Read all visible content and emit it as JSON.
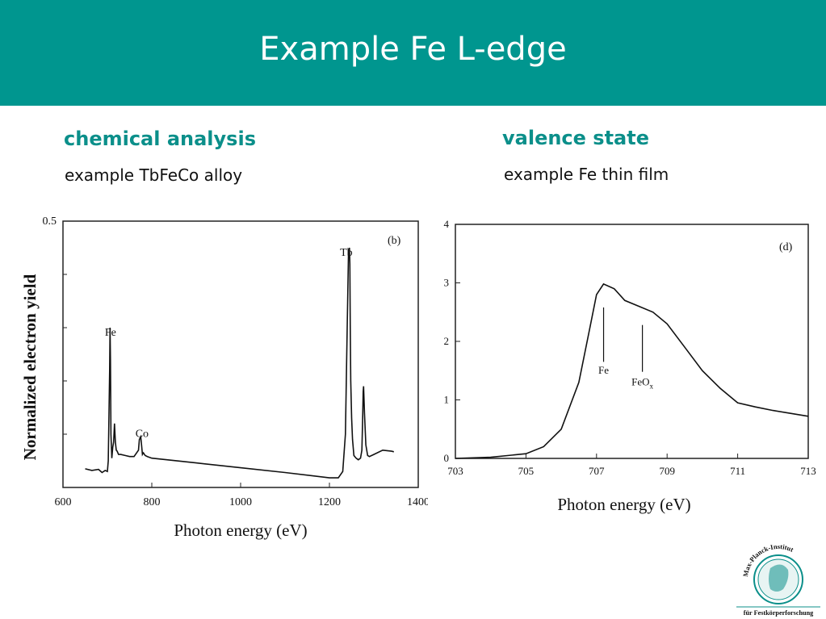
{
  "slide": {
    "title": "Example Fe L-edge"
  },
  "left": {
    "heading": "chemical analysis",
    "subtitle": "example TbFeCo alloy"
  },
  "right": {
    "heading": "valence state",
    "subtitle": "example Fe thin film"
  },
  "logo": {
    "text_arc": "Max-Planck-Institut",
    "text_bottom": "für Festkörperforschung"
  },
  "colors": {
    "header": "#00968f",
    "heading": "#0b8f8a"
  },
  "chart_data": [
    {
      "type": "line",
      "panel_label": "(b)",
      "xlabel": "Photon energy  (eV)",
      "ylabel": "Normalized electron yield",
      "xlim": [
        600,
        1400
      ],
      "ylim": [
        0,
        0.5
      ],
      "xticks": [
        "600",
        "800",
        "1000",
        "1200",
        "1400"
      ],
      "yticks": [
        "0.5"
      ],
      "annotations": [
        {
          "text": "Fe",
          "x": 707,
          "y": 0.285
        },
        {
          "text": "Co",
          "x": 778,
          "y": 0.095
        },
        {
          "text": "Tb",
          "x": 1238,
          "y": 0.435
        }
      ],
      "series": [
        {
          "x": [
            650,
            665,
            680,
            688,
            695,
            700,
            702,
            705,
            706,
            707,
            708,
            710,
            712,
            714,
            716,
            718,
            720,
            722,
            725,
            730,
            740,
            750,
            760,
            770,
            772,
            775,
            777,
            779,
            781,
            785,
            790,
            800,
            900,
            1000,
            1100,
            1200,
            1220,
            1230,
            1236,
            1240,
            1243,
            1245,
            1246,
            1247,
            1248,
            1250,
            1252,
            1255,
            1260,
            1265,
            1270,
            1273,
            1275,
            1276,
            1277,
            1279,
            1282,
            1286,
            1290,
            1300,
            1320,
            1340,
            1345
          ],
          "y": [
            0.035,
            0.032,
            0.034,
            0.028,
            0.032,
            0.03,
            0.05,
            0.22,
            0.3,
            0.24,
            0.1,
            0.055,
            0.075,
            0.085,
            0.12,
            0.085,
            0.07,
            0.068,
            0.062,
            0.062,
            0.06,
            0.058,
            0.058,
            0.07,
            0.09,
            0.095,
            0.08,
            0.062,
            0.065,
            0.06,
            0.058,
            0.055,
            0.046,
            0.037,
            0.028,
            0.018,
            0.018,
            0.03,
            0.1,
            0.3,
            0.44,
            0.45,
            0.42,
            0.3,
            0.2,
            0.13,
            0.09,
            0.06,
            0.055,
            0.052,
            0.055,
            0.07,
            0.14,
            0.18,
            0.19,
            0.14,
            0.08,
            0.06,
            0.058,
            0.062,
            0.07,
            0.068,
            0.067
          ]
        }
      ]
    },
    {
      "type": "line",
      "panel_label": "(d)",
      "xlabel": "Photon energy  (eV)",
      "xlim": [
        703,
        713
      ],
      "ylim": [
        0,
        4
      ],
      "xticks": [
        "703",
        "705",
        "707",
        "709",
        "711",
        "713"
      ],
      "yticks": [
        "0",
        "1",
        "2",
        "3",
        "4"
      ],
      "annotations": [
        {
          "text": "Fe",
          "x": 707.2,
          "y": 1.45
        },
        {
          "text": "FeO",
          "subscript": "x",
          "x": 708.3,
          "y": 1.25
        }
      ],
      "series": [
        {
          "x": [
            703,
            704,
            705,
            705.5,
            706,
            706.5,
            706.8,
            707,
            707.2,
            707.5,
            707.8,
            708.2,
            708.6,
            709,
            709.5,
            710,
            710.5,
            711,
            711.5,
            712,
            712.5,
            713
          ],
          "y": [
            0.0,
            0.02,
            0.08,
            0.2,
            0.5,
            1.3,
            2.2,
            2.8,
            2.98,
            2.9,
            2.7,
            2.6,
            2.5,
            2.3,
            1.9,
            1.5,
            1.2,
            0.95,
            0.88,
            0.82,
            0.77,
            0.72
          ]
        }
      ]
    }
  ]
}
